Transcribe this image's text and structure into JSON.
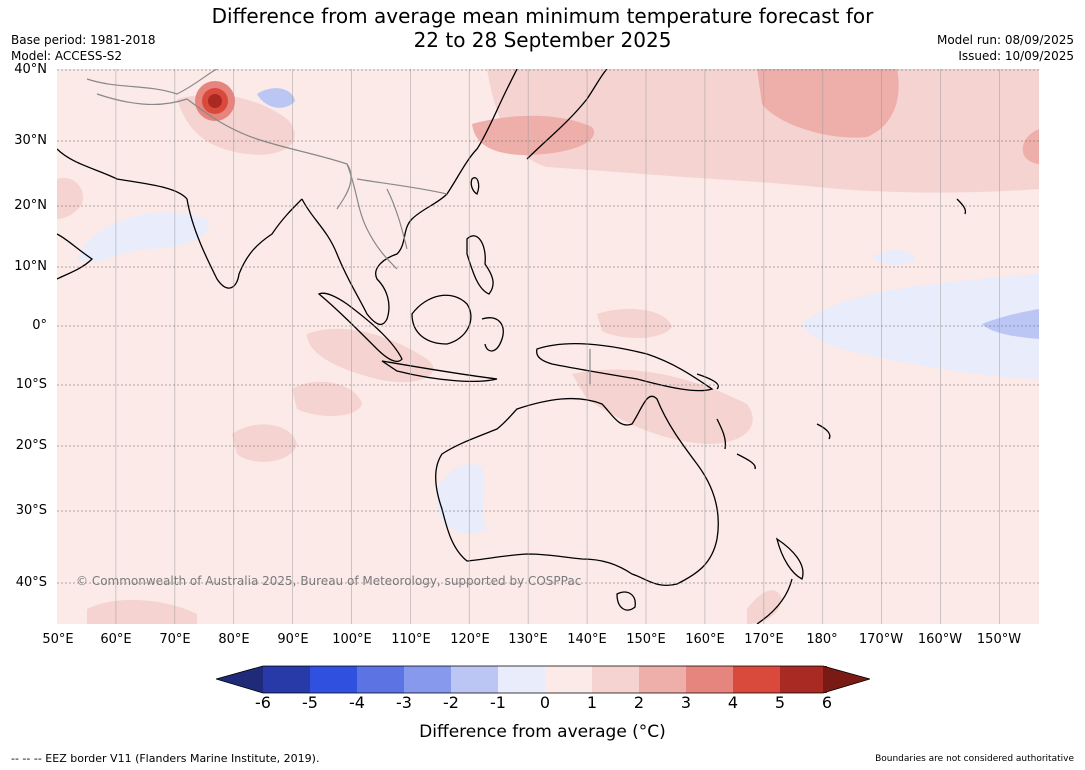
{
  "title_line1": "Difference from average mean minimum temperature forecast for",
  "title_line2": "22 to 28 September 2025",
  "meta_left": {
    "base_period": "Base period: 1981-2018",
    "model": "Model: ACCESS-S2"
  },
  "meta_right": {
    "model_run": "Model run: 08/09/2025",
    "issued": "Issued: 10/09/2025"
  },
  "latitudes": [
    "40°N",
    "30°N",
    "20°N",
    "10°N",
    "0°",
    "10°S",
    "20°S",
    "30°S",
    "40°S"
  ],
  "longitudes": [
    "50°E",
    "60°E",
    "70°E",
    "80°E",
    "90°E",
    "100°E",
    "110°E",
    "120°E",
    "130°E",
    "140°E",
    "150°E",
    "160°E",
    "170°E",
    "180°",
    "170°W",
    "160°W",
    "150°W"
  ],
  "copyright": "© Commonwealth of Australia 2025, Bureau of Meteorology, supported by COSPPac",
  "colorbar": {
    "labels": [
      "-6",
      "-5",
      "-4",
      "-3",
      "-2",
      "-1",
      "0",
      "1",
      "2",
      "3",
      "4",
      "5",
      "6"
    ],
    "colors": [
      "#1f2a78",
      "#273aa8",
      "#3050df",
      "#5c74e3",
      "#8799ec",
      "#bcc6f4",
      "#e8ecfb",
      "#fbeae8",
      "#f5d3d1",
      "#eeaeaa",
      "#e6857e",
      "#d94a3d",
      "#a92a23",
      "#7a1a14"
    ],
    "title": "Difference from average (°C)"
  },
  "footer_left": "--  --  -- EEZ border V11 (Flanders Marine Institute, 2019).",
  "footer_right": "Boundaries are not considered authoritative"
}
